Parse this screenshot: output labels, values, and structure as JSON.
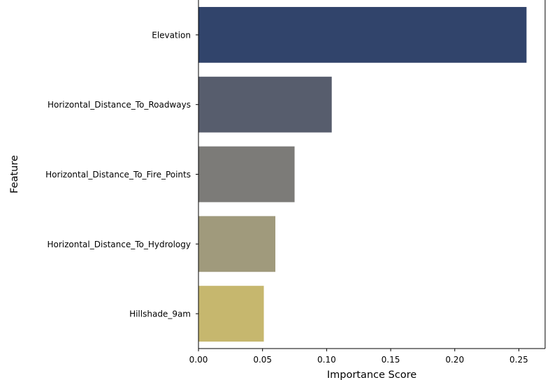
{
  "chart_data": {
    "type": "bar",
    "orientation": "horizontal",
    "categories": [
      "Elevation",
      "Horizontal_Distance_To_Roadways",
      "Horizontal_Distance_To_Fire_Points",
      "Horizontal_Distance_To_Hydrology",
      "Hillshade_9am"
    ],
    "values": [
      0.256,
      0.104,
      0.075,
      0.06,
      0.051
    ],
    "colors": [
      "#31446b",
      "#575d6d",
      "#7c7b78",
      "#a09a7c",
      "#c6b76e"
    ],
    "xlabel": "Importance Score",
    "ylabel": "Feature",
    "xlim": [
      0,
      0.2705
    ],
    "xticks": [
      0.0,
      0.05,
      0.1,
      0.15,
      0.2,
      0.25
    ],
    "xtick_labels": [
      "0.00",
      "0.05",
      "0.10",
      "0.15",
      "0.20",
      "0.25"
    ],
    "grid": false,
    "legend": "none"
  }
}
